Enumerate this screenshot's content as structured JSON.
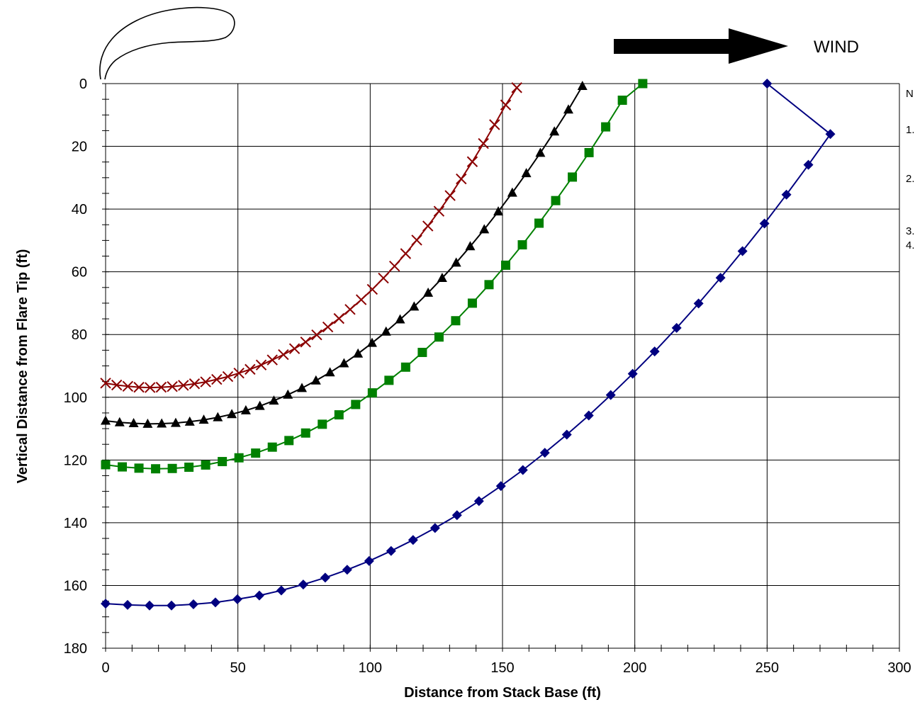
{
  "chart_data": {
    "type": "line",
    "title": "",
    "xlabel": "Distance from Stack Base (ft)",
    "ylabel": "Vertical Distance from Flare Tip (ft)",
    "xlim": [
      0,
      300
    ],
    "ylim": [
      0,
      180
    ],
    "y_inverted": true,
    "x_ticks": [
      "0",
      "50",
      "100",
      "150",
      "200",
      "250",
      "300"
    ],
    "y_ticks": [
      "0",
      "20",
      "40",
      "60",
      "80",
      "100",
      "120",
      "140",
      "160",
      "180"
    ],
    "grid": true,
    "legend": "none",
    "series": [
      {
        "marker": "x",
        "color": "#8B0000",
        "points": [
          [
            0,
            95.5
          ],
          [
            4.2,
            96.1
          ],
          [
            8.4,
            96.5
          ],
          [
            12.6,
            96.8
          ],
          [
            16.8,
            96.9
          ],
          [
            21,
            96.8
          ],
          [
            25.2,
            96.6
          ],
          [
            29.4,
            96.2
          ],
          [
            33.6,
            95.7
          ],
          [
            37.8,
            95.1
          ],
          [
            42,
            94.3
          ],
          [
            46.2,
            93.4
          ],
          [
            50.4,
            92.3
          ],
          [
            54.6,
            91.1
          ],
          [
            58.8,
            89.7
          ],
          [
            63,
            88.1
          ],
          [
            67.2,
            86.4
          ],
          [
            71.4,
            84.5
          ],
          [
            75.6,
            82.4
          ],
          [
            79.8,
            80.1
          ],
          [
            84,
            77.6
          ],
          [
            88.2,
            74.9
          ],
          [
            92.4,
            72
          ],
          [
            96.6,
            68.9
          ],
          [
            100.8,
            65.6
          ],
          [
            105,
            62
          ],
          [
            109.2,
            58.2
          ],
          [
            113.4,
            54.2
          ],
          [
            117.6,
            49.9
          ],
          [
            121.8,
            45.4
          ],
          [
            126,
            40.7
          ],
          [
            130.2,
            35.7
          ],
          [
            134.4,
            30.4
          ],
          [
            138.6,
            24.9
          ],
          [
            142.8,
            19.1
          ],
          [
            147,
            13.1
          ],
          [
            151.2,
            6.8
          ],
          [
            155.4,
            1.3
          ]
        ]
      },
      {
        "marker": "triangle",
        "color": "#000000",
        "points": [
          [
            0,
            107.5
          ],
          [
            5.3,
            108
          ],
          [
            10.6,
            108.3
          ],
          [
            15.9,
            108.5
          ],
          [
            21.2,
            108.4
          ],
          [
            26.5,
            108.2
          ],
          [
            31.8,
            107.8
          ],
          [
            37.1,
            107.2
          ],
          [
            42.4,
            106.4
          ],
          [
            47.7,
            105.4
          ],
          [
            53,
            104.2
          ],
          [
            58.3,
            102.8
          ],
          [
            63.6,
            101.1
          ],
          [
            68.9,
            99.2
          ],
          [
            74.2,
            97.1
          ],
          [
            79.5,
            94.7
          ],
          [
            84.8,
            92.1
          ],
          [
            90.1,
            89.2
          ],
          [
            95.4,
            86.1
          ],
          [
            100.7,
            82.7
          ],
          [
            106,
            79.1
          ],
          [
            111.3,
            75.2
          ],
          [
            116.6,
            71.1
          ],
          [
            121.9,
            66.7
          ],
          [
            127.2,
            62
          ],
          [
            132.5,
            57.1
          ],
          [
            137.8,
            51.9
          ],
          [
            143.1,
            46.5
          ],
          [
            148.4,
            40.8
          ],
          [
            153.7,
            34.8
          ],
          [
            159,
            28.6
          ],
          [
            164.3,
            22.1
          ],
          [
            169.6,
            15.3
          ],
          [
            174.9,
            8.3
          ],
          [
            180.2,
            0.8
          ]
        ]
      },
      {
        "marker": "square",
        "color": "#008000",
        "points": [
          [
            0,
            121.5
          ],
          [
            6.3,
            122.2
          ],
          [
            12.6,
            122.6
          ],
          [
            18.9,
            122.8
          ],
          [
            25.2,
            122.7
          ],
          [
            31.5,
            122.3
          ],
          [
            37.8,
            121.6
          ],
          [
            44.1,
            120.5
          ],
          [
            50.4,
            119.3
          ],
          [
            56.7,
            117.8
          ],
          [
            63,
            115.9
          ],
          [
            69.3,
            113.8
          ],
          [
            75.6,
            111.4
          ],
          [
            81.9,
            108.6
          ],
          [
            88.2,
            105.6
          ],
          [
            94.5,
            102.3
          ],
          [
            100.8,
            98.6
          ],
          [
            107.1,
            94.6
          ],
          [
            113.4,
            90.4
          ],
          [
            119.7,
            85.7
          ],
          [
            126,
            80.8
          ],
          [
            132.3,
            75.6
          ],
          [
            138.6,
            70
          ],
          [
            144.9,
            64.1
          ],
          [
            151.2,
            57.9
          ],
          [
            157.5,
            51.4
          ],
          [
            163.8,
            44.5
          ],
          [
            170.1,
            37.3
          ],
          [
            176.4,
            29.8
          ],
          [
            182.7,
            22
          ],
          [
            189,
            13.8
          ],
          [
            195.3,
            5.3
          ],
          [
            203,
            0
          ]
        ]
      },
      {
        "marker": "diamond",
        "color": "#000080",
        "points": [
          [
            0,
            165.8
          ],
          [
            8.3,
            166.2
          ],
          [
            16.6,
            166.4
          ],
          [
            24.9,
            166.4
          ],
          [
            33.2,
            166
          ],
          [
            41.5,
            165.4
          ],
          [
            49.8,
            164.4
          ],
          [
            58.1,
            163.2
          ],
          [
            66.4,
            161.6
          ],
          [
            74.7,
            159.7
          ],
          [
            83,
            157.5
          ],
          [
            91.3,
            155
          ],
          [
            99.6,
            152.2
          ],
          [
            107.9,
            149
          ],
          [
            116.2,
            145.5
          ],
          [
            124.5,
            141.7
          ],
          [
            132.8,
            137.6
          ],
          [
            141.1,
            133.1
          ],
          [
            149.4,
            128.3
          ],
          [
            157.7,
            123.2
          ],
          [
            166,
            117.7
          ],
          [
            174.3,
            111.9
          ],
          [
            182.6,
            105.8
          ],
          [
            190.9,
            99.3
          ],
          [
            199.2,
            92.5
          ],
          [
            207.5,
            85.4
          ],
          [
            215.8,
            77.9
          ],
          [
            224.1,
            70.1
          ],
          [
            232.4,
            61.9
          ],
          [
            240.7,
            53.4
          ],
          [
            249,
            44.6
          ],
          [
            257.3,
            35.4
          ],
          [
            265.6,
            25.9
          ],
          [
            273.9,
            16.1
          ],
          [
            250,
            0
          ]
        ]
      }
    ]
  },
  "annotations": {
    "wind_label": "WIND",
    "wind_arrow_icon": "right-arrow-icon",
    "flame_icon": "flame-outline-icon",
    "notes": [
      "N",
      "1.",
      "2.",
      "3.",
      "4."
    ]
  }
}
